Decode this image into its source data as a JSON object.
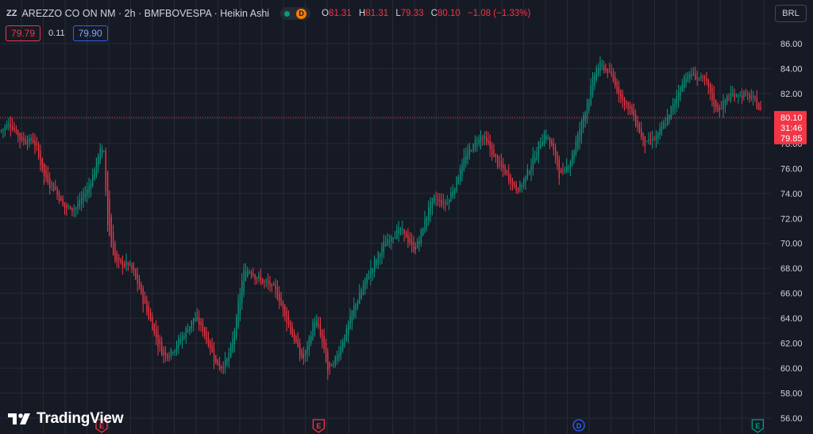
{
  "header": {
    "symbol_title": "AREZZO CO ON NM · 2h · BMFBOVESPA · Heikin Ashi",
    "logo_mini": "ZZ",
    "delayed_badge": "D",
    "ohlc": {
      "open_label": "O",
      "open": "81.31",
      "high_label": "H",
      "high": "81.31",
      "low_label": "L",
      "low": "79.33",
      "close_label": "C",
      "close": "80.10",
      "change": "−1.08 (−1.33%)"
    }
  },
  "quote": {
    "bid": "79.79",
    "spread": "0.11",
    "ask": "79.90"
  },
  "currency_button": "BRL",
  "watermark": "TradingView",
  "colors": {
    "background": "#161a25",
    "up": "#089981",
    "down": "#f23645",
    "grid": "#262a36",
    "text": "#d1d4dc"
  },
  "chart_data": {
    "type": "candlestick",
    "style": "Heikin Ashi",
    "currency": "BRL",
    "ylim": [
      55.5,
      87.2
    ],
    "y_ticks": [
      "86.00",
      "84.00",
      "82.00",
      "80.00",
      "78.00",
      "76.00",
      "74.00",
      "72.00",
      "70.00",
      "68.00",
      "66.00",
      "64.00",
      "62.00",
      "60.00",
      "58.00",
      "56.00"
    ],
    "grid": true,
    "last_price": {
      "price": 80.1,
      "label": "80.10",
      "countdown": "31:46",
      "secondary_label": "79.85",
      "secondary": 79.85
    },
    "events": [
      {
        "label": "E",
        "kind": "earnings",
        "at_fraction": 0.125
      },
      {
        "label": "E",
        "kind": "earnings",
        "at_fraction": 0.392
      },
      {
        "label": "D",
        "kind": "dividend",
        "at_fraction": 0.712
      },
      {
        "label": "E",
        "kind": "earnings",
        "at_fraction": 0.932
      }
    ],
    "price_path": [
      [
        0,
        79.0
      ],
      [
        10,
        80.0
      ],
      [
        25,
        78.0
      ],
      [
        40,
        78.5
      ],
      [
        55,
        74.5
      ],
      [
        65,
        74.5
      ],
      [
        80,
        72.5
      ],
      [
        95,
        73.0
      ],
      [
        110,
        74.8
      ],
      [
        125,
        78.5
      ],
      [
        130,
        77.5
      ],
      [
        134,
        68.5
      ],
      [
        145,
        67.5
      ],
      [
        160,
        68.5
      ],
      [
        175,
        65.5
      ],
      [
        195,
        62.0
      ],
      [
        205,
        60.5
      ],
      [
        215,
        61.8
      ],
      [
        230,
        63.0
      ],
      [
        243,
        64.5
      ],
      [
        258,
        62.0
      ],
      [
        275,
        59.5
      ],
      [
        290,
        62.0
      ],
      [
        305,
        69.0
      ],
      [
        325,
        67.0
      ],
      [
        345,
        66.0
      ],
      [
        365,
        62.5
      ],
      [
        380,
        60.0
      ],
      [
        395,
        65.0
      ],
      [
        412,
        58.5
      ],
      [
        430,
        63.0
      ],
      [
        455,
        67.0
      ],
      [
        480,
        70.0
      ],
      [
        500,
        71.5
      ],
      [
        520,
        69.0
      ],
      [
        540,
        74.0
      ],
      [
        560,
        73.0
      ],
      [
        580,
        77.0
      ],
      [
        605,
        79.0
      ],
      [
        620,
        76.5
      ],
      [
        650,
        74.0
      ],
      [
        665,
        76.5
      ],
      [
        685,
        79.5
      ],
      [
        705,
        74.5
      ],
      [
        725,
        79.0
      ],
      [
        740,
        82.5
      ],
      [
        750,
        85.0
      ],
      [
        765,
        83.5
      ],
      [
        780,
        81.5
      ],
      [
        795,
        80.0
      ],
      [
        810,
        77.5
      ],
      [
        830,
        79.0
      ],
      [
        850,
        82.0
      ],
      [
        860,
        84.0
      ],
      [
        885,
        83.0
      ],
      [
        900,
        80.0
      ],
      [
        915,
        82.0
      ],
      [
        935,
        82.0
      ],
      [
        950,
        81.0
      ],
      [
        958,
        80.1
      ]
    ]
  }
}
